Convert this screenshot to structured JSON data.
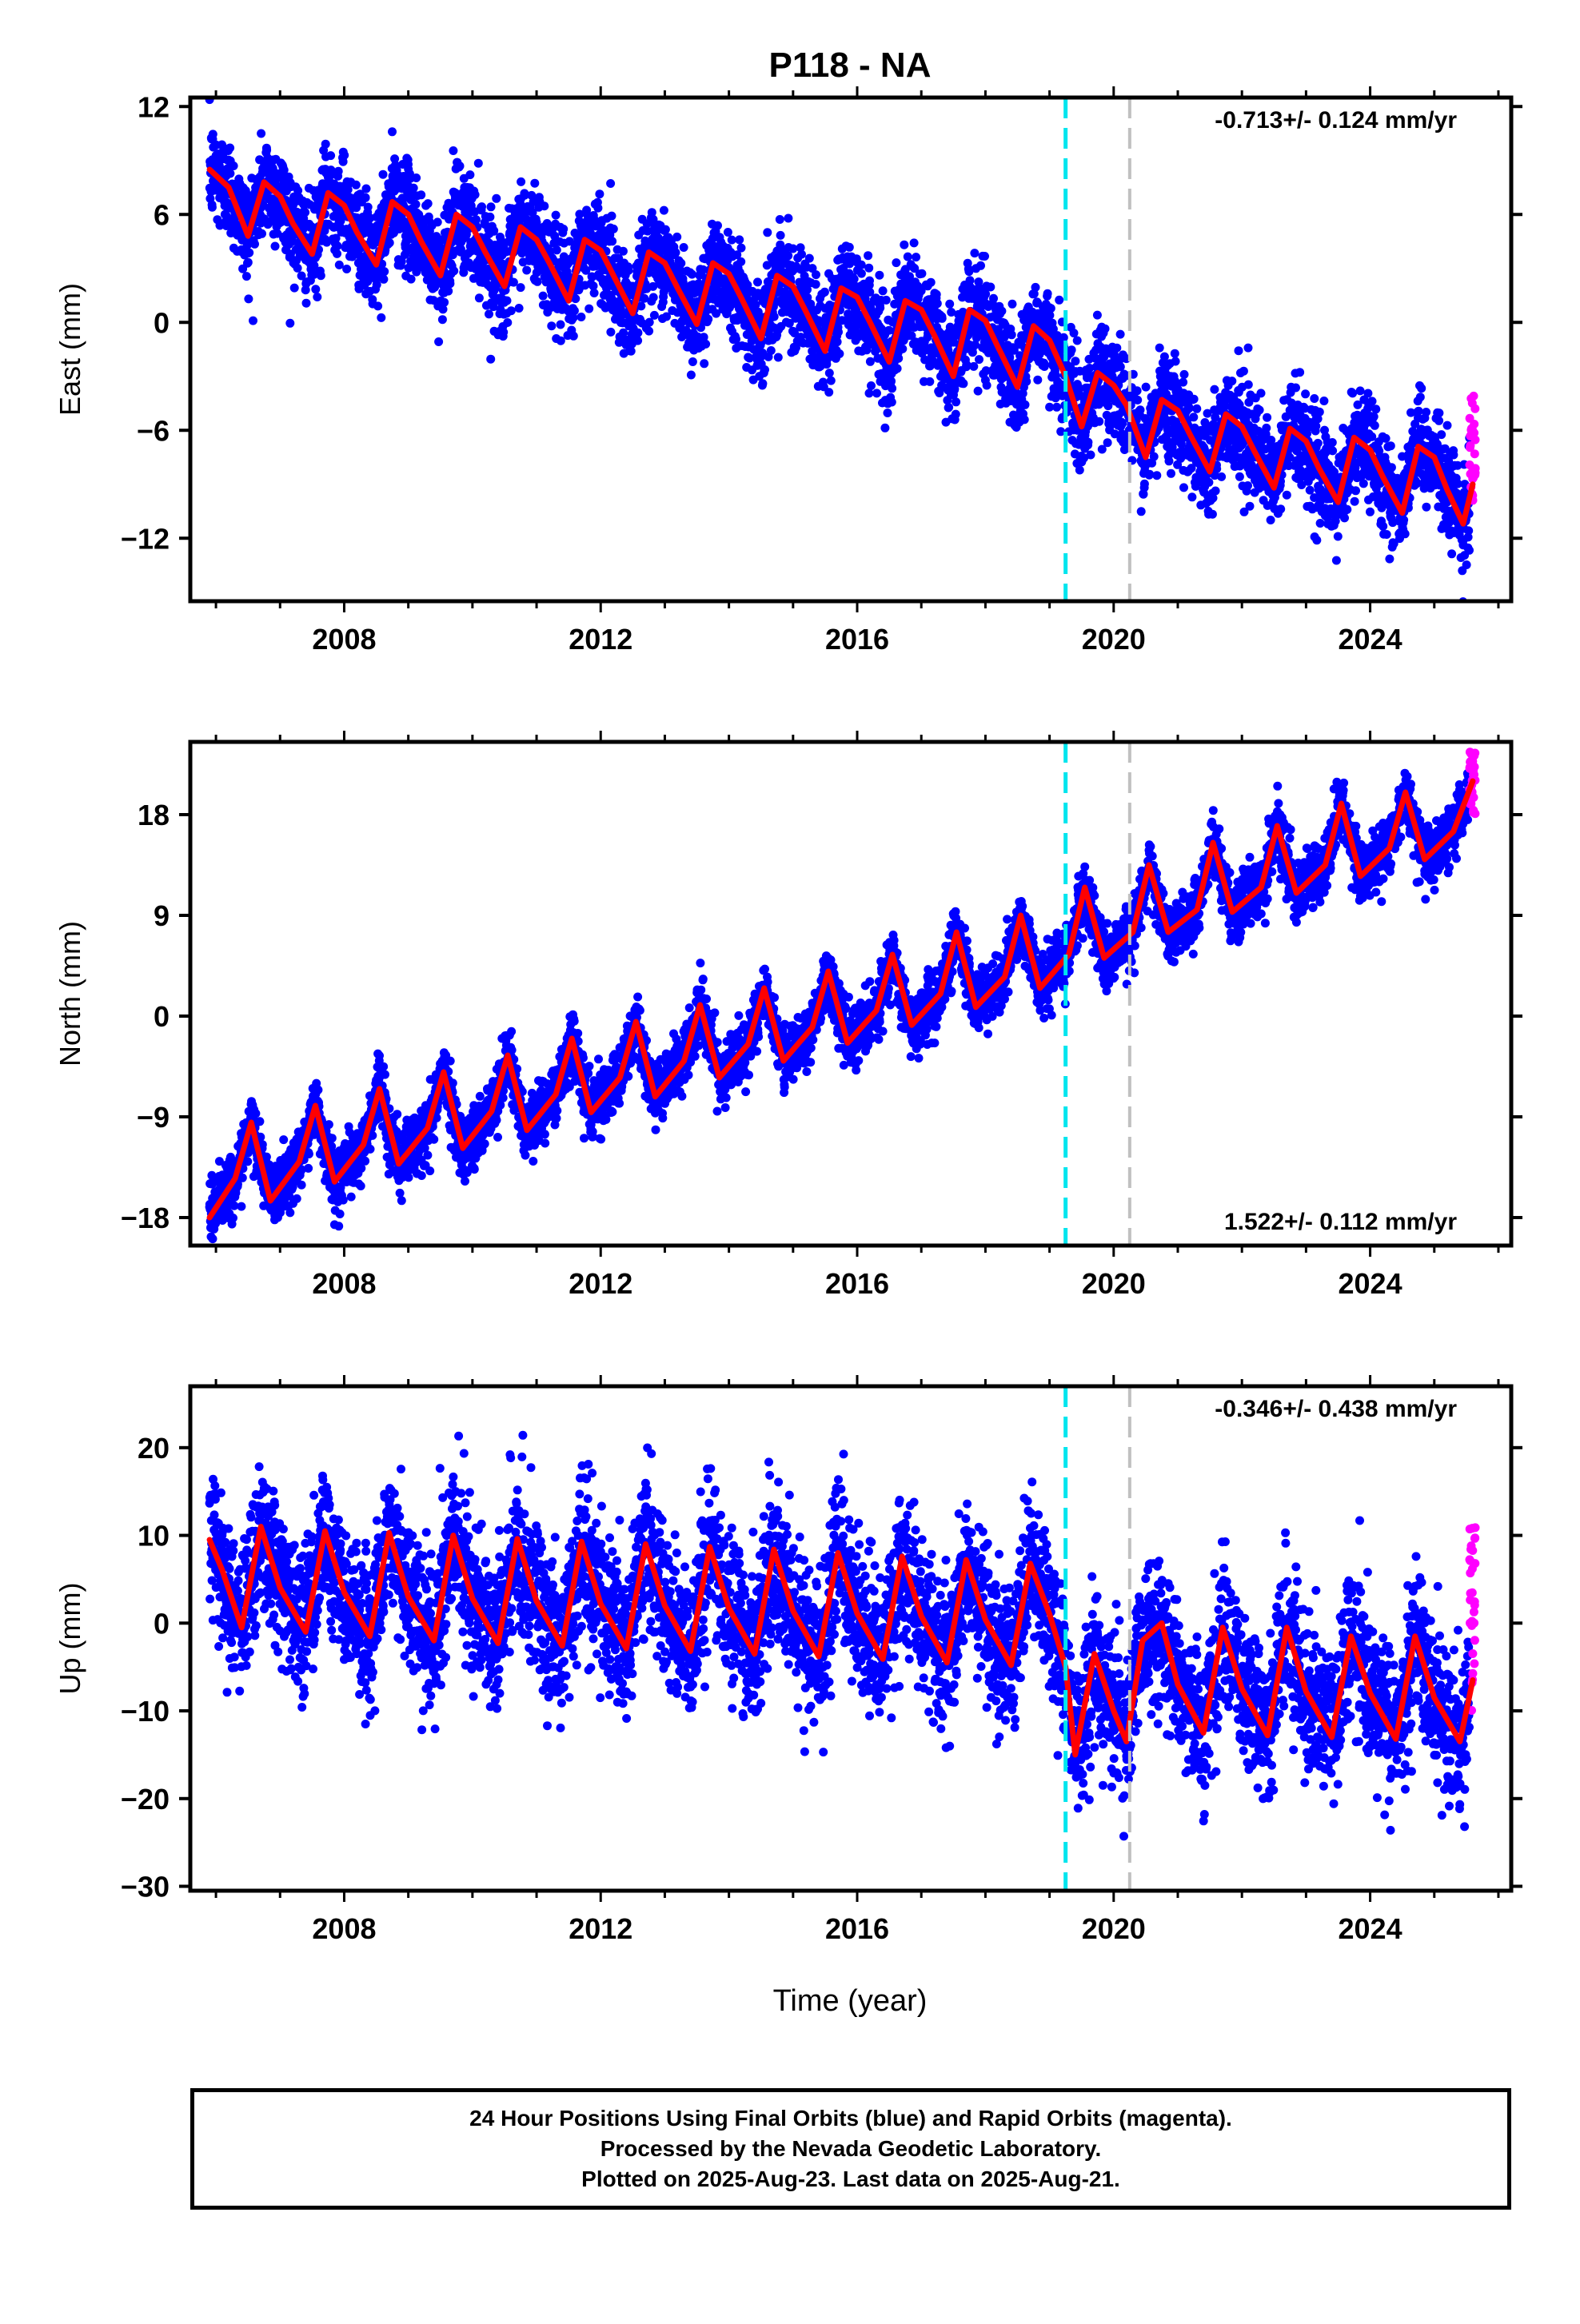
{
  "title": "P118 - NA",
  "colors": {
    "final_orbits": "#0000ff",
    "rapid_orbits": "#ff00ff",
    "model_fit": "#ff0000",
    "event_line_1": "#00e5ee",
    "event_line_2": "#c0c0c0"
  },
  "x_axis": {
    "label": "Time (year)",
    "ticks": [
      "2008",
      "2012",
      "2016",
      "2020",
      "2024"
    ],
    "range": [
      2005.6,
      2026.2
    ]
  },
  "footer": {
    "line1": "24 Hour Positions Using Final Orbits (blue) and Rapid Orbits (magenta).",
    "line2": "Processed by the Nevada Geodetic Laboratory.",
    "line3": "Plotted on 2025-Aug-23. Last data on 2025-Aug-21."
  },
  "chart_data": [
    {
      "type": "scatter",
      "component": "east",
      "ylabel": "East (mm)",
      "yticks": [
        "12",
        "6",
        "0",
        "−6",
        "−12"
      ],
      "ytick_values": [
        12,
        6,
        0,
        -6,
        -12
      ],
      "ylim": [
        -15.5,
        12.5
      ],
      "rate_label": "-0.713+/- 0.124 mm/yr",
      "rate_position": "top-right",
      "series": [
        {
          "name": "Final Orbits",
          "color": "blue",
          "x_range": [
            2005.9,
            2025.55
          ]
        },
        {
          "name": "Rapid Orbits",
          "color": "magenta",
          "x_range": [
            2025.55,
            2025.64
          ],
          "y_range": [
            -10,
            -4
          ]
        },
        {
          "name": "Model fit",
          "color": "red"
        }
      ],
      "fit_curve": {
        "x": [
          2005.9,
          2006.2,
          2006.5,
          2006.75,
          2007.0,
          2007.2,
          2007.5,
          2007.75,
          2008.0,
          2008.2,
          2008.5,
          2008.75,
          2009.0,
          2009.2,
          2009.5,
          2009.75,
          2010.0,
          2010.2,
          2010.5,
          2010.75,
          2011.0,
          2011.2,
          2011.5,
          2011.75,
          2012.0,
          2012.2,
          2012.5,
          2012.75,
          2013.0,
          2013.2,
          2013.5,
          2013.75,
          2014.0,
          2014.2,
          2014.5,
          2014.75,
          2015.0,
          2015.2,
          2015.5,
          2015.75,
          2016.0,
          2016.2,
          2016.5,
          2016.75,
          2017.0,
          2017.2,
          2017.5,
          2017.75,
          2018.0,
          2018.2,
          2018.5,
          2018.75,
          2019.0,
          2019.25,
          2019.5,
          2019.75,
          2020.0,
          2020.2,
          2020.5,
          2020.75,
          2021.0,
          2021.2,
          2021.5,
          2021.75,
          2022.0,
          2022.2,
          2022.5,
          2022.75,
          2023.0,
          2023.2,
          2023.5,
          2023.75,
          2024.0,
          2024.2,
          2024.5,
          2024.75,
          2025.0,
          2025.2,
          2025.45,
          2025.6
        ],
        "y": [
          8.5,
          7.5,
          4.8,
          7.8,
          7.0,
          5.5,
          3.8,
          7.2,
          6.5,
          5.0,
          3.2,
          6.7,
          6.0,
          4.5,
          2.6,
          6.0,
          5.3,
          3.9,
          2.0,
          5.3,
          4.6,
          3.3,
          1.2,
          4.6,
          4.0,
          2.6,
          0.5,
          3.9,
          3.3,
          1.9,
          -0.1,
          3.3,
          2.7,
          1.3,
          -0.9,
          2.6,
          2.0,
          0.6,
          -1.6,
          1.9,
          1.4,
          0.0,
          -2.2,
          1.2,
          0.7,
          -0.7,
          -3.0,
          0.7,
          0.1,
          -1.4,
          -3.6,
          -0.2,
          -1.0,
          -3.0,
          -5.8,
          -2.8,
          -3.5,
          -4.6,
          -7.5,
          -4.3,
          -4.9,
          -6.3,
          -8.3,
          -5.1,
          -5.8,
          -7.2,
          -9.2,
          -5.9,
          -6.6,
          -8.1,
          -10.0,
          -6.4,
          -7.1,
          -8.6,
          -10.6,
          -6.9,
          -7.5,
          -9.3,
          -11.2,
          -9.0
        ]
      }
    },
    {
      "type": "scatter",
      "component": "north",
      "ylabel": "North (mm)",
      "yticks": [
        "18",
        "9",
        "0",
        "−9",
        "−18"
      ],
      "ytick_values": [
        18,
        9,
        0,
        -9,
        -18
      ],
      "ylim": [
        -20.5,
        24.5
      ],
      "rate_label": "1.522+/- 0.112 mm/yr",
      "rate_position": "bottom-right",
      "series": [
        {
          "name": "Final Orbits",
          "color": "blue",
          "x_range": [
            2005.9,
            2025.55
          ]
        },
        {
          "name": "Rapid Orbits",
          "color": "magenta",
          "x_range": [
            2025.55,
            2025.64
          ],
          "y_range": [
            18,
            24
          ]
        },
        {
          "name": "Model fit",
          "color": "red"
        }
      ],
      "fit_curve": {
        "x": [
          2005.9,
          2006.3,
          2006.55,
          2006.85,
          2007.3,
          2007.55,
          2007.85,
          2008.3,
          2008.55,
          2008.85,
          2009.3,
          2009.55,
          2009.85,
          2010.3,
          2010.55,
          2010.85,
          2011.3,
          2011.55,
          2011.85,
          2012.3,
          2012.55,
          2012.85,
          2013.3,
          2013.55,
          2013.85,
          2014.3,
          2014.55,
          2014.85,
          2015.3,
          2015.55,
          2015.85,
          2016.3,
          2016.55,
          2016.85,
          2017.3,
          2017.55,
          2017.85,
          2018.3,
          2018.55,
          2018.85,
          2019.3,
          2019.55,
          2019.85,
          2020.3,
          2020.55,
          2020.85,
          2021.3,
          2021.55,
          2021.85,
          2022.3,
          2022.55,
          2022.85,
          2023.3,
          2023.55,
          2023.85,
          2024.3,
          2024.55,
          2024.85,
          2025.3,
          2025.6
        ],
        "y": [
          -18.0,
          -14.5,
          -9.5,
          -16.5,
          -13.0,
          -8.0,
          -14.8,
          -11.5,
          -6.5,
          -13.2,
          -10.0,
          -5.0,
          -11.8,
          -8.5,
          -3.5,
          -10.2,
          -7.0,
          -2.0,
          -8.6,
          -5.5,
          -0.5,
          -7.2,
          -4.0,
          1.0,
          -5.5,
          -2.5,
          2.5,
          -4.0,
          -1.0,
          4.0,
          -2.4,
          0.5,
          5.5,
          -0.8,
          2.0,
          7.5,
          0.8,
          3.5,
          9.0,
          2.5,
          5.5,
          11.5,
          5.2,
          7.5,
          13.5,
          7.5,
          9.5,
          15.5,
          9.3,
          11.5,
          17.0,
          11.0,
          13.5,
          19.0,
          12.5,
          15.0,
          20.0,
          14.0,
          16.5,
          21.0
        ]
      }
    },
    {
      "type": "scatter",
      "component": "up",
      "ylabel": "Up (mm)",
      "yticks": [
        "20",
        "10",
        "0",
        "−10",
        "−20",
        "−30"
      ],
      "ytick_values": [
        20,
        10,
        0,
        -10,
        -20,
        -30
      ],
      "ylim": [
        -30.5,
        27.0
      ],
      "rate_label": "-0.346+/- 0.438 mm/yr",
      "rate_position": "top-right",
      "series": [
        {
          "name": "Final Orbits",
          "color": "blue",
          "x_range": [
            2005.9,
            2025.55
          ]
        },
        {
          "name": "Rapid Orbits",
          "color": "magenta",
          "x_range": [
            2025.55,
            2025.64
          ],
          "y_range": [
            -10,
            11
          ]
        },
        {
          "name": "Model fit",
          "color": "red"
        }
      ],
      "fit_curve": {
        "x": [
          2005.9,
          2006.1,
          2006.4,
          2006.7,
          2007.0,
          2007.4,
          2007.7,
          2008.0,
          2008.4,
          2008.7,
          2009.0,
          2009.4,
          2009.7,
          2010.0,
          2010.4,
          2010.7,
          2011.0,
          2011.4,
          2011.7,
          2012.0,
          2012.4,
          2012.7,
          2013.0,
          2013.4,
          2013.7,
          2014.0,
          2014.4,
          2014.7,
          2015.0,
          2015.4,
          2015.7,
          2016.0,
          2016.4,
          2016.7,
          2017.0,
          2017.4,
          2017.7,
          2018.0,
          2018.4,
          2018.7,
          2019.0,
          2019.25,
          2019.4,
          2019.7,
          2020.0,
          2020.2,
          2020.45,
          2020.75,
          2021.0,
          2021.4,
          2021.7,
          2022.0,
          2022.4,
          2022.7,
          2023.0,
          2023.4,
          2023.7,
          2024.0,
          2024.4,
          2024.7,
          2025.0,
          2025.4,
          2025.6
        ],
        "y": [
          9.5,
          6.0,
          -0.5,
          11.0,
          4.0,
          -1.0,
          10.5,
          3.5,
          -1.5,
          10.3,
          3.0,
          -2.0,
          10.0,
          2.8,
          -2.3,
          9.6,
          2.5,
          -2.6,
          9.3,
          2.2,
          -2.9,
          9.0,
          2.0,
          -3.2,
          8.7,
          1.7,
          -3.5,
          8.4,
          1.4,
          -3.8,
          8.0,
          1.1,
          -4.1,
          7.6,
          0.8,
          -4.5,
          7.2,
          0.4,
          -4.8,
          6.8,
          1.0,
          -5.0,
          -15.0,
          -3.5,
          -10.0,
          -13.5,
          -2.0,
          0.0,
          -7.0,
          -12.5,
          -0.5,
          -7.5,
          -12.8,
          -0.5,
          -7.8,
          -13.0,
          -1.5,
          -8.0,
          -13.2,
          -1.5,
          -8.5,
          -13.5,
          -6.5
        ]
      }
    }
  ],
  "event_lines": [
    {
      "x": 2019.25,
      "style": "dashed",
      "color": "cyan"
    },
    {
      "x": 2020.25,
      "style": "dashed",
      "color": "gray"
    }
  ]
}
